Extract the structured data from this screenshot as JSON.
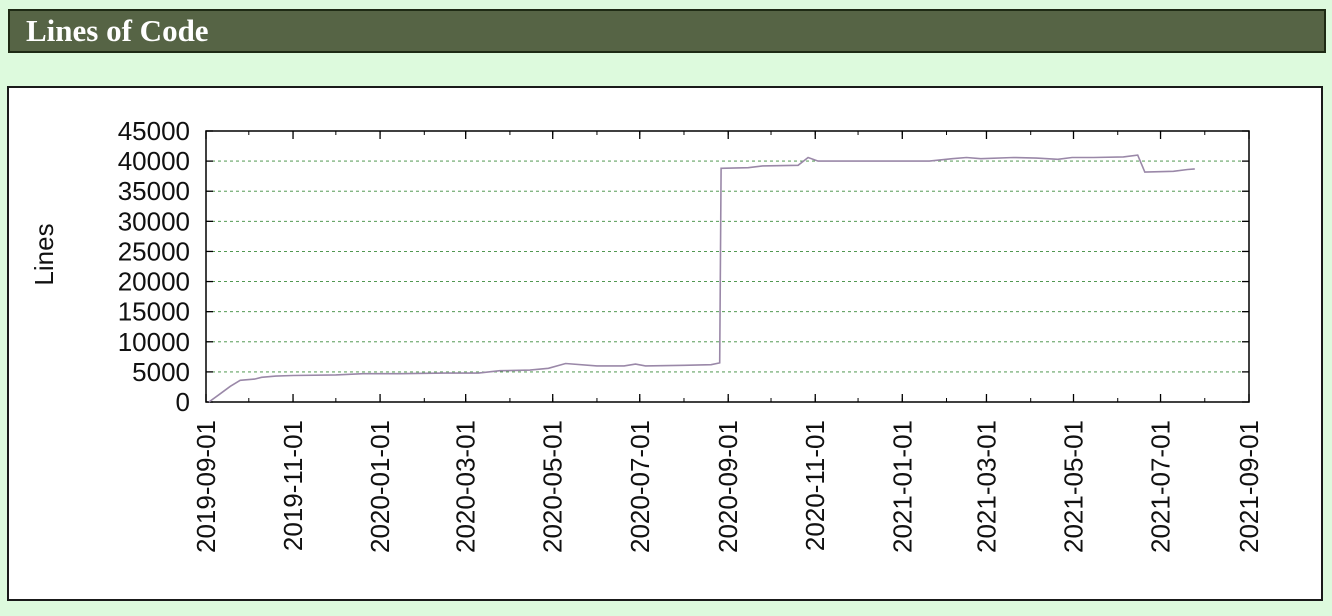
{
  "page_title": "Lines of Code",
  "chart_data": {
    "type": "line",
    "title": "",
    "xlabel": "",
    "ylabel": "Lines",
    "x_type": "date",
    "xlim": [
      "2019-09-01",
      "2021-09-01"
    ],
    "ylim": [
      0,
      45000
    ],
    "grid": true,
    "legend": "none",
    "line_color": "#9a88a8",
    "grid_color": "#3a8a3a",
    "y_ticks": [
      0,
      5000,
      10000,
      15000,
      20000,
      25000,
      30000,
      35000,
      40000,
      45000
    ],
    "x_ticks": [
      "2019-09-01",
      "2019-11-01",
      "2020-01-01",
      "2020-03-01",
      "2020-05-01",
      "2020-07-01",
      "2020-09-01",
      "2020-11-01",
      "2021-01-01",
      "2021-03-01",
      "2021-05-01",
      "2021-07-01",
      "2021-09-01"
    ],
    "series": [
      {
        "x": [
          "2019-09-03",
          "2019-09-10",
          "2019-09-18",
          "2019-09-25",
          "2019-10-05",
          "2019-10-10",
          "2019-10-20",
          "2019-11-01",
          "2019-12-01",
          "2019-12-20",
          "2020-01-15",
          "2020-02-15",
          "2020-03-10",
          "2020-03-25",
          "2020-04-15",
          "2020-04-28",
          "2020-05-10",
          "2020-06-01",
          "2020-06-20",
          "2020-06-28",
          "2020-07-05",
          "2020-08-01",
          "2020-08-20",
          "2020-08-26",
          "2020-08-27",
          "2020-09-15",
          "2020-09-25",
          "2020-10-20",
          "2020-10-27",
          "2020-11-03",
          "2020-11-15",
          "2020-12-20",
          "2021-01-20",
          "2021-02-05",
          "2021-02-15",
          "2021-02-25",
          "2021-03-20",
          "2021-04-05",
          "2021-04-20",
          "2021-04-30",
          "2021-05-15",
          "2021-06-05",
          "2021-06-15",
          "2021-06-20",
          "2021-07-10",
          "2021-07-20",
          "2021-07-25"
        ],
        "y": [
          0,
          1200,
          2600,
          3600,
          3800,
          4100,
          4300,
          4400,
          4500,
          4700,
          4700,
          4800,
          4800,
          5200,
          5300,
          5600,
          6400,
          6000,
          6000,
          6300,
          6000,
          6100,
          6200,
          6500,
          38800,
          38900,
          39200,
          39300,
          40600,
          40000,
          40000,
          40000,
          40000,
          40400,
          40600,
          40400,
          40600,
          40500,
          40300,
          40600,
          40600,
          40700,
          41000,
          38200,
          38300,
          38600,
          38700
        ]
      }
    ]
  }
}
